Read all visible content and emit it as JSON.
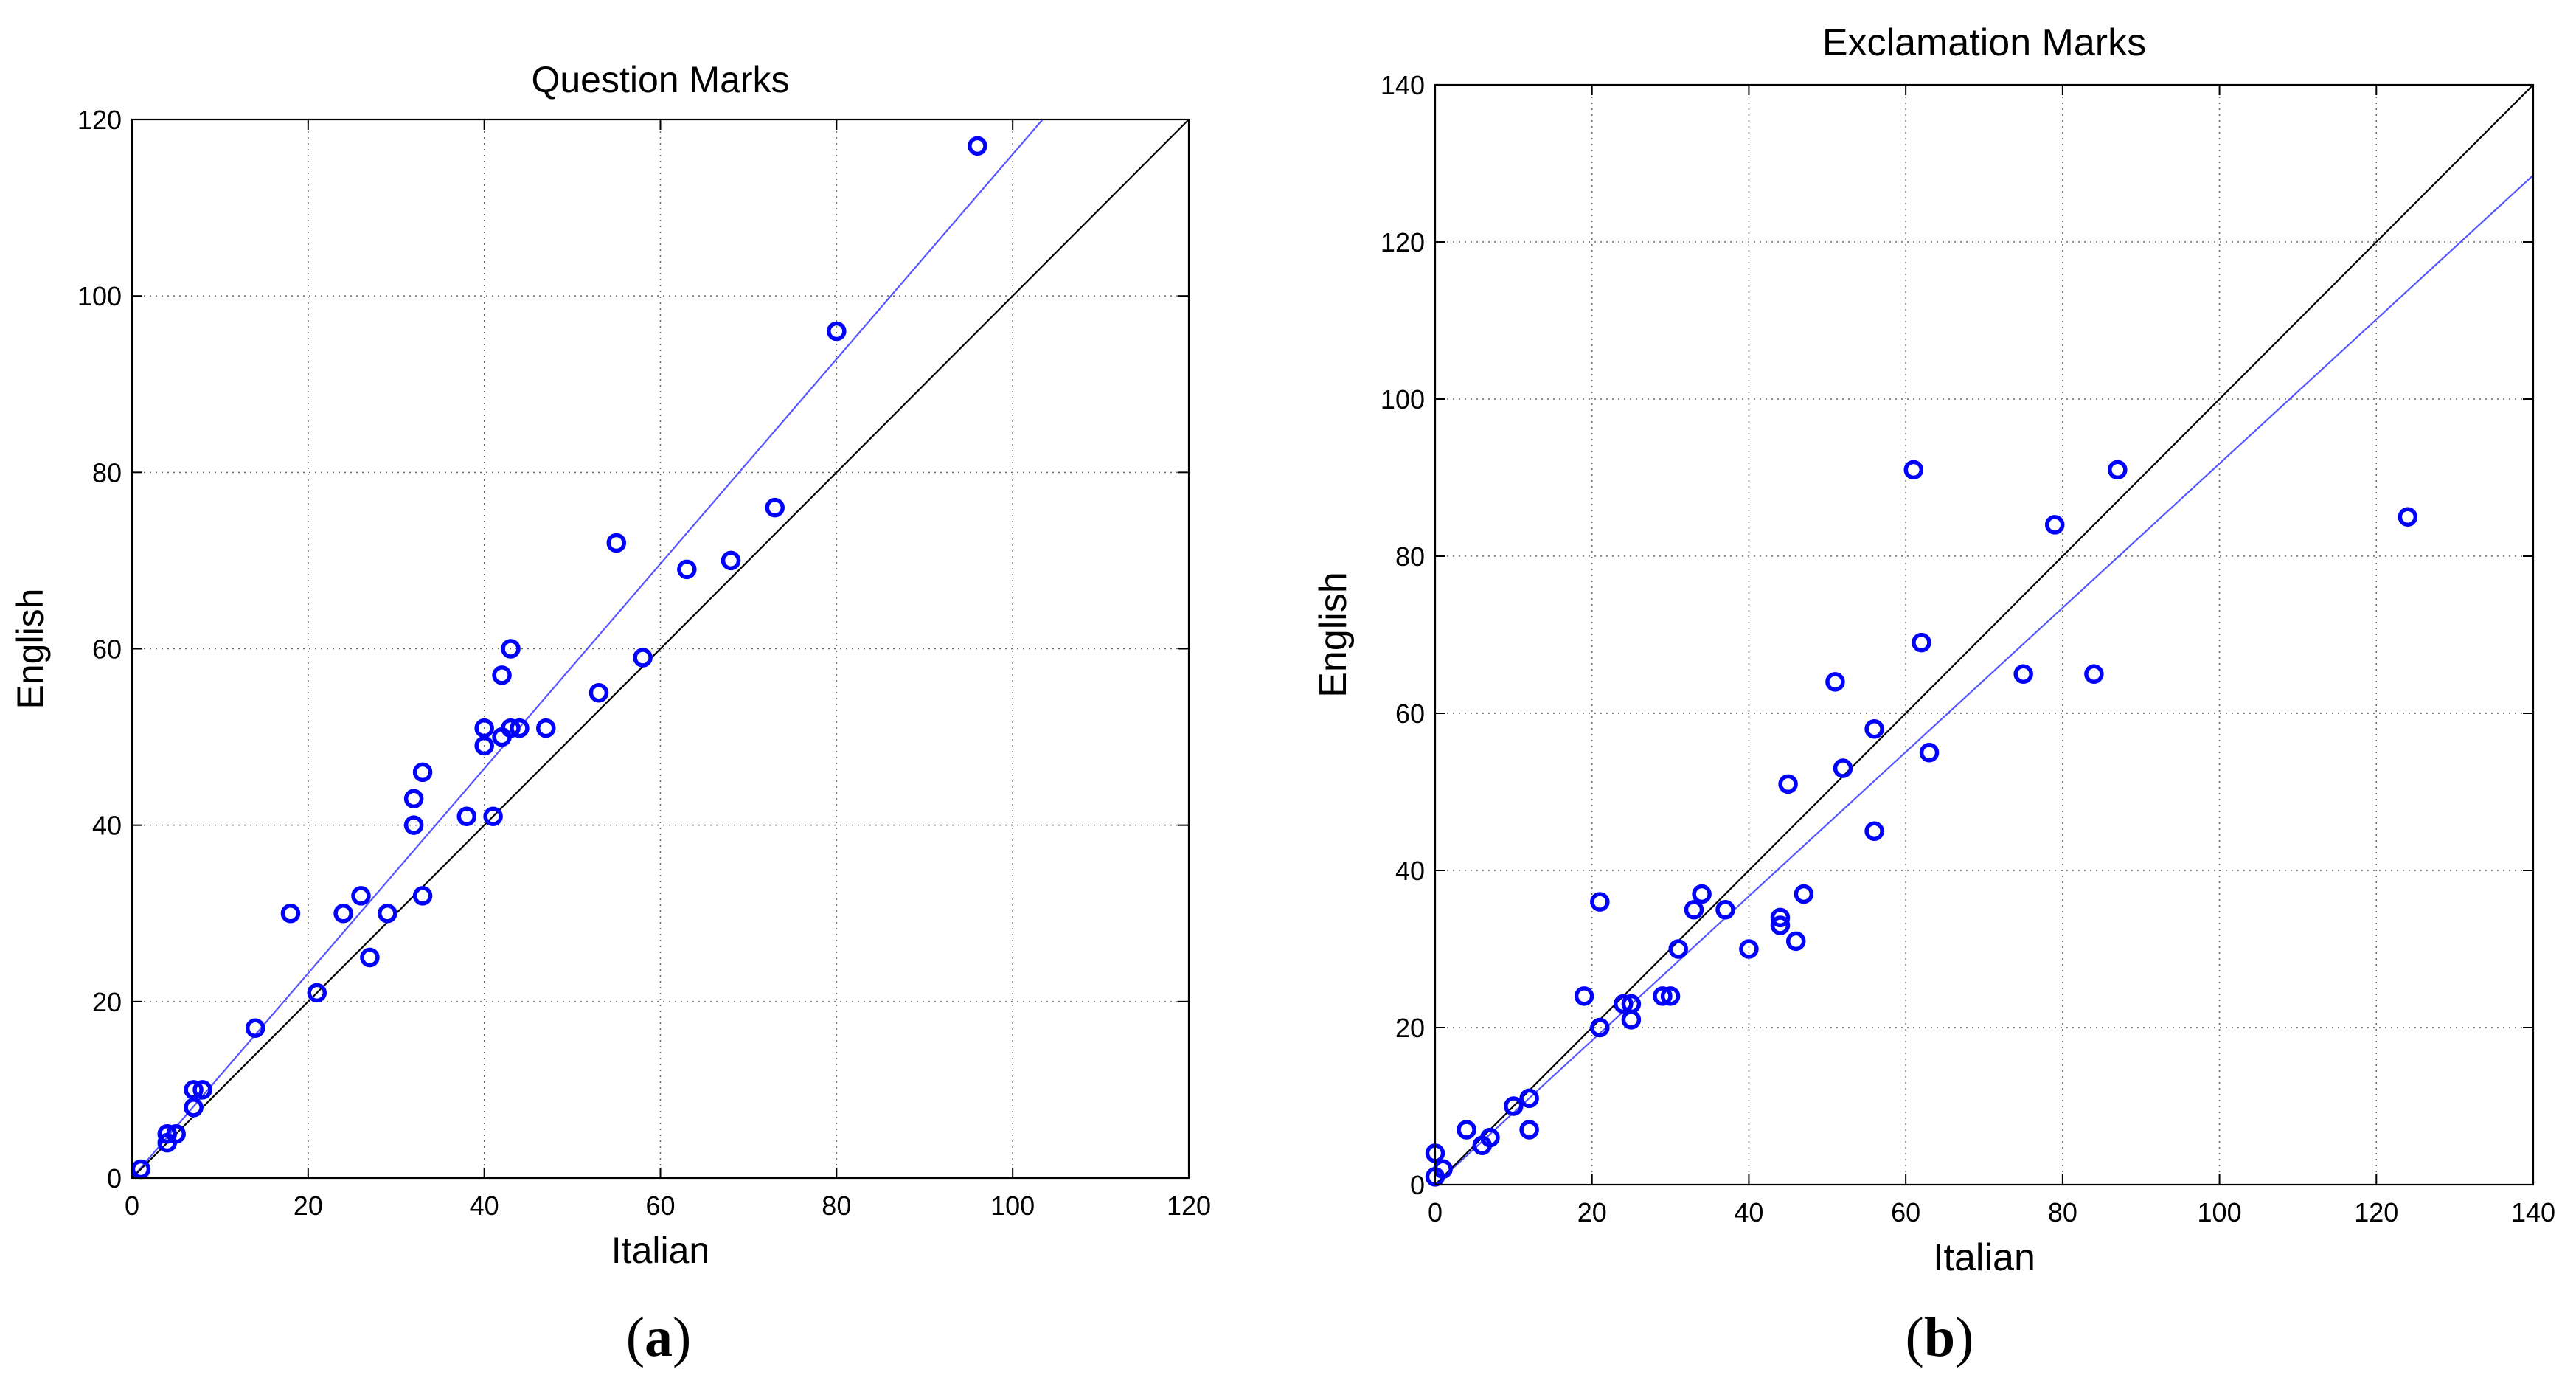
{
  "figure": {
    "captions": [
      "(a)",
      "(b)"
    ],
    "caption_letters": [
      "a",
      "b"
    ]
  },
  "colors": {
    "points": "#0000ff",
    "fit_line": "#5555ff",
    "identity_line": "#000000",
    "grid": "#666666",
    "axes": "#000000"
  },
  "chart_data": [
    {
      "type": "scatter",
      "title": "Question Marks",
      "xlabel": "Italian",
      "ylabel": "English",
      "xlim": [
        0,
        120
      ],
      "ylim": [
        0,
        120
      ],
      "xticks": [
        0,
        20,
        40,
        60,
        80,
        100,
        120
      ],
      "yticks": [
        0,
        20,
        40,
        60,
        80,
        100,
        120
      ],
      "grid": true,
      "points": [
        [
          1,
          1
        ],
        [
          4,
          4
        ],
        [
          4,
          5
        ],
        [
          5,
          5
        ],
        [
          7,
          8
        ],
        [
          7,
          10
        ],
        [
          8,
          10
        ],
        [
          14,
          17
        ],
        [
          18,
          30
        ],
        [
          21,
          21
        ],
        [
          24,
          30
        ],
        [
          26,
          32
        ],
        [
          27,
          25
        ],
        [
          29,
          30
        ],
        [
          32,
          40
        ],
        [
          32,
          43
        ],
        [
          33,
          46
        ],
        [
          33,
          32
        ],
        [
          38,
          41
        ],
        [
          40,
          49
        ],
        [
          40,
          51
        ],
        [
          41,
          41
        ],
        [
          42,
          50
        ],
        [
          42,
          57
        ],
        [
          43,
          60
        ],
        [
          43,
          51
        ],
        [
          44,
          51
        ],
        [
          47,
          51
        ],
        [
          53,
          55
        ],
        [
          55,
          72
        ],
        [
          58,
          59
        ],
        [
          63,
          69
        ],
        [
          68,
          70
        ],
        [
          73,
          76
        ],
        [
          80,
          96
        ],
        [
          96,
          117
        ]
      ],
      "lines": [
        {
          "kind": "fit",
          "x": [
            0,
            103.4
          ],
          "y": [
            0,
            120
          ]
        },
        {
          "kind": "identity",
          "x": [
            0,
            120
          ],
          "y": [
            0,
            120
          ]
        }
      ]
    },
    {
      "type": "scatter",
      "title": "Exclamation Marks",
      "xlabel": "Italian",
      "ylabel": "English",
      "xlim": [
        0,
        140
      ],
      "ylim": [
        0,
        140
      ],
      "xticks": [
        0,
        20,
        40,
        60,
        80,
        100,
        120,
        140
      ],
      "yticks": [
        0,
        20,
        40,
        60,
        80,
        100,
        120,
        140
      ],
      "grid": true,
      "points": [
        [
          0,
          1
        ],
        [
          0,
          4
        ],
        [
          1,
          2
        ],
        [
          4,
          7
        ],
        [
          6,
          5
        ],
        [
          7,
          6
        ],
        [
          10,
          10
        ],
        [
          12,
          11
        ],
        [
          12,
          7
        ],
        [
          19,
          24
        ],
        [
          21,
          20
        ],
        [
          21,
          36
        ],
        [
          24,
          23
        ],
        [
          25,
          21
        ],
        [
          25,
          23
        ],
        [
          29,
          24
        ],
        [
          30,
          24
        ],
        [
          31,
          30
        ],
        [
          33,
          35
        ],
        [
          34,
          37
        ],
        [
          37,
          35
        ],
        [
          40,
          30
        ],
        [
          44,
          33
        ],
        [
          44,
          34
        ],
        [
          45,
          51
        ],
        [
          46,
          31
        ],
        [
          47,
          37
        ],
        [
          51,
          64
        ],
        [
          52,
          53
        ],
        [
          56,
          58
        ],
        [
          56,
          45
        ],
        [
          61,
          91
        ],
        [
          62,
          69
        ],
        [
          63,
          55
        ],
        [
          75,
          65
        ],
        [
          79,
          84
        ],
        [
          84,
          65
        ],
        [
          87,
          91
        ],
        [
          124,
          85
        ]
      ],
      "lines": [
        {
          "kind": "fit",
          "x": [
            0,
            140
          ],
          "y": [
            0,
            128.5
          ]
        },
        {
          "kind": "identity",
          "x": [
            0,
            140
          ],
          "y": [
            0,
            140
          ]
        }
      ]
    }
  ]
}
